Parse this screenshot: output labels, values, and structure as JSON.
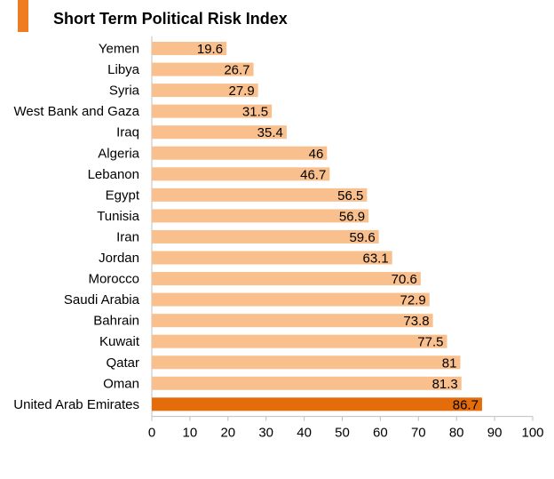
{
  "chart_data": {
    "type": "bar",
    "orientation": "horizontal",
    "title": "Short Term Political Risk Index",
    "categories": [
      "Yemen",
      "Libya",
      "Syria",
      "West Bank and Gaza",
      "Iraq",
      "Algeria",
      "Lebanon",
      "Egypt",
      "Tunisia",
      "Iran",
      "Jordan",
      "Morocco",
      "Saudi Arabia",
      "Bahrain",
      "Kuwait",
      "Qatar",
      "Oman",
      "United Arab Emirates"
    ],
    "values": [
      19.6,
      26.7,
      27.9,
      31.5,
      35.4,
      46,
      46.7,
      56.5,
      56.9,
      59.6,
      63.1,
      70.6,
      72.9,
      73.8,
      77.5,
      81,
      81.3,
      86.7
    ],
    "value_labels": [
      "19.6",
      "26.7",
      "27.9",
      "31.5",
      "35.4",
      "46",
      "46.7",
      "56.5",
      "56.9",
      "59.6",
      "63.1",
      "70.6",
      "72.9",
      "73.8",
      "77.5",
      "81",
      "81.3",
      "86.7"
    ],
    "highlight_category": "United Arab Emirates",
    "xlim": [
      0,
      100
    ],
    "x_ticks": [
      0,
      10,
      20,
      30,
      40,
      50,
      60,
      70,
      80,
      90,
      100
    ],
    "x_tick_labels": [
      "0",
      "10",
      "20",
      "30",
      "40",
      "50",
      "60",
      "70",
      "80",
      "90",
      "100"
    ],
    "xlabel": "",
    "ylabel": "",
    "grid": false,
    "legend": "none",
    "colors": {
      "bar": "#f9c08e",
      "highlight": "#e46c0a",
      "accent": "#f07c21",
      "axis": "#bfbfbf"
    }
  }
}
